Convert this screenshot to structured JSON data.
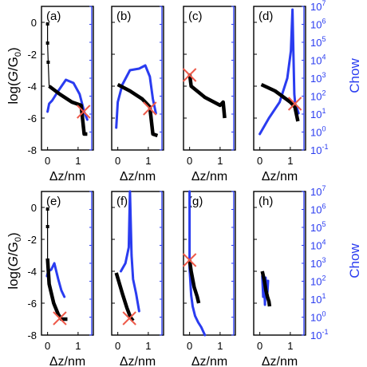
{
  "figure": {
    "left_axis_label": "log(G/G0)",
    "right_axis_label": "Chow",
    "x_axis_label": "Δz/nm"
  },
  "colors": {
    "conductance": "#000000",
    "chow": "#2a3cf0",
    "marker": "#ee5a4a",
    "axis": "#000000"
  },
  "chart_data": [
    {
      "type": "line",
      "panel": "(a)",
      "x_ticks": [
        "0",
        "1"
      ],
      "y_ticks": [
        "0",
        "-2",
        "-4",
        "-6",
        "-8"
      ],
      "ylim": [
        -8,
        1
      ],
      "xlim": [
        -0.2,
        1.5
      ],
      "conductance": {
        "x": [
          0,
          0,
          0.02,
          0.05,
          0.4,
          0.8,
          1.1,
          1.2,
          1.3
        ],
        "y": [
          -0.1,
          -1.3,
          -2.5,
          -4.0,
          -4.5,
          -5.0,
          -5.2,
          -7.0,
          -7.0
        ]
      },
      "chow": {
        "x": [
          0,
          0.05,
          0.15,
          0.35,
          0.6,
          0.85,
          1.05,
          1.2,
          1.3
        ],
        "y": [
          -5.6,
          -5.1,
          -4.9,
          -4.3,
          -3.6,
          -3.8,
          -4.5,
          -5.6,
          -6.1
        ]
      },
      "marker": {
        "x": 1.18,
        "y": -5.6
      }
    },
    {
      "type": "line",
      "panel": "(b)",
      "x_ticks": [
        "0",
        "1"
      ],
      "y_ticks": [
        "0",
        "-2",
        "-4",
        "-6",
        "-8"
      ],
      "ylim": [
        -8,
        1
      ],
      "xlim": [
        -0.2,
        1.5
      ],
      "conductance": {
        "x": [
          0,
          0.4,
          0.8,
          1.05,
          1.15,
          1.3
        ],
        "y": [
          -3.9,
          -4.3,
          -4.8,
          -5.3,
          -7.0,
          -7.1
        ]
      },
      "chow": {
        "x": [
          -0.05,
          0.0,
          0.15,
          0.4,
          0.7,
          0.9,
          1.05,
          1.15,
          1.25
        ],
        "y": [
          -6.6,
          -5.0,
          -3.9,
          -3.0,
          -2.9,
          -2.7,
          -3.4,
          -4.8,
          -5.7
        ]
      },
      "marker": {
        "x": 1.05,
        "y": -5.4
      }
    },
    {
      "type": "line",
      "panel": "(c)",
      "x_ticks": [
        "0",
        "1"
      ],
      "y_ticks": [
        "0",
        "-2",
        "-4",
        "-6",
        "-8"
      ],
      "ylim": [
        -8,
        1
      ],
      "xlim": [
        -0.2,
        1.5
      ],
      "conductance": {
        "x": [
          0,
          0.05,
          0.5,
          1.0,
          1.1,
          1.15
        ],
        "y": [
          -3.2,
          -4.0,
          -4.7,
          -5.2,
          -5.0,
          -6.0
        ]
      },
      "chow": {
        "x": [],
        "y": []
      },
      "marker": {
        "x": 0.0,
        "y": -3.3
      }
    },
    {
      "type": "line",
      "panel": "(d)",
      "x_ticks": [
        "0",
        "1"
      ],
      "y_ticks": [
        "0",
        "-2",
        "-4",
        "-6",
        "-8"
      ],
      "ylim": [
        -8,
        1
      ],
      "xlim": [
        -0.2,
        1.5
      ],
      "conductance": {
        "x": [
          0.05,
          0.5,
          1.0,
          1.15,
          1.25
        ],
        "y": [
          -3.9,
          -4.3,
          -5.0,
          -5.3,
          -6.2
        ]
      },
      "chow": {
        "x": [
          0.0,
          0.3,
          0.65,
          0.9,
          1.02,
          1.07,
          1.1,
          1.13,
          1.16,
          1.22,
          1.27
        ],
        "y": [
          -7.0,
          -6.0,
          -5.0,
          -3.5,
          -1.8,
          0.8,
          -1.8,
          -4.5,
          -5.1,
          -5.4,
          -5.7
        ]
      },
      "marker": {
        "x": 1.15,
        "y": -5.1
      }
    },
    {
      "type": "line",
      "panel": "(e)",
      "x_ticks": [
        "0",
        "1"
      ],
      "y_ticks": [
        "0",
        "-2",
        "-4",
        "-6",
        "-8"
      ],
      "ylim": [
        -8,
        1
      ],
      "xlim": [
        -0.2,
        1.5
      ],
      "conductance": {
        "x": [
          0,
          0,
          0.0,
          0.05,
          0.2,
          0.35,
          0.45,
          0.65
        ],
        "y": [
          -0.1,
          -1.2,
          -3.2,
          -4.8,
          -6.0,
          -6.7,
          -7.0,
          -7.0
        ]
      },
      "chow": {
        "x": [
          -0.02,
          0.02,
          0.12,
          0.22,
          0.35,
          0.45,
          0.55
        ],
        "y": [
          -4.3,
          -4.0,
          -3.9,
          -3.5,
          -4.5,
          -5.2,
          -5.6
        ]
      },
      "marker": {
        "x": 0.4,
        "y": -6.95
      }
    },
    {
      "type": "line",
      "panel": "(f)",
      "x_ticks": [
        "0",
        "1"
      ],
      "y_ticks": [
        "0",
        "-2",
        "-4",
        "-6",
        "-8"
      ],
      "ylim": [
        -8,
        1
      ],
      "xlim": [
        -0.2,
        1.5
      ],
      "conductance": {
        "x": [
          -0.05,
          0.15,
          0.3,
          0.42,
          0.5
        ],
        "y": [
          -4.1,
          -5.4,
          -6.3,
          -6.9,
          -7.1
        ]
      },
      "chow": {
        "x": [
          0.1,
          0.25,
          0.36,
          0.4,
          0.45,
          0.5,
          0.6,
          0.7
        ],
        "y": [
          -4.0,
          -3.5,
          -2.5,
          1.0,
          -3.0,
          -4.5,
          -5.4,
          -6.5
        ]
      },
      "marker": {
        "x": 0.38,
        "y": -6.95
      }
    },
    {
      "type": "line",
      "panel": "(g)",
      "x_ticks": [
        "0",
        "1"
      ],
      "y_ticks": [
        "0",
        "-2",
        "-4",
        "-6",
        "-8"
      ],
      "ylim": [
        -8,
        1
      ],
      "xlim": [
        -0.2,
        1.5
      ],
      "conductance": {
        "x": [
          0,
          0.05,
          0.15,
          0.25,
          0.3
        ],
        "y": [
          -3.3,
          -4.0,
          -5.0,
          -5.6,
          -6.0
        ]
      },
      "chow": {
        "x": [
          0,
          0.0,
          0.05,
          0.1,
          0.18,
          0.28,
          0.38,
          0.5
        ],
        "y": [
          1.0,
          -3.8,
          -5.5,
          -6.2,
          -6.8,
          -7.2,
          -7.5,
          -8.0
        ]
      },
      "marker": {
        "x": 0.0,
        "y": -3.3
      }
    },
    {
      "type": "line",
      "panel": "(h)",
      "x_ticks": [
        "0",
        "1"
      ],
      "y_ticks": [
        "0",
        "-2",
        "-4",
        "-6",
        "-8"
      ],
      "ylim": [
        -8,
        1
      ],
      "xlim": [
        -0.2,
        1.5
      ],
      "conductance": {
        "x": [
          0.08,
          0.15,
          0.2,
          0.25,
          0.3,
          0.32
        ],
        "y": [
          -4.0,
          -4.6,
          -5.2,
          -5.6,
          -5.9,
          -6.2
        ]
      },
      "chow": {
        "x": [
          0.08,
          0.11,
          0.14,
          0.17,
          0.19,
          0.21,
          0.23,
          0.25,
          0.27
        ],
        "y": [
          -4.3,
          -5.6,
          -4.5,
          -6.1,
          -4.4,
          -5.1,
          -4.6,
          -5.3,
          -4.6
        ]
      },
      "marker": null
    }
  ],
  "right_axis": {
    "ticks": [
      {
        "label": "10",
        "exp": "7"
      },
      {
        "label": "10",
        "exp": "6"
      },
      {
        "label": "10",
        "exp": "5"
      },
      {
        "label": "10",
        "exp": "4"
      },
      {
        "label": "10",
        "exp": "3"
      },
      {
        "label": "10",
        "exp": "2"
      },
      {
        "label": "10",
        "exp": "1"
      },
      {
        "label": "10",
        "exp": "0"
      },
      {
        "label": "10",
        "exp": "-1"
      }
    ]
  }
}
